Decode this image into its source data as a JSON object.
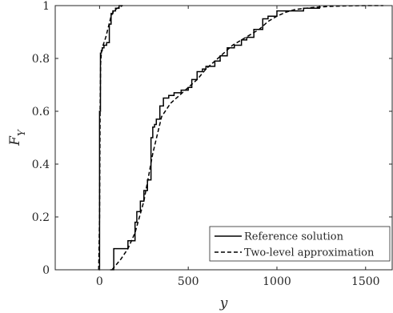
{
  "chart_data": {
    "type": "line",
    "title": "",
    "xlabel": "y",
    "ylabel": "F_Y",
    "ylabel_main": "F",
    "ylabel_sub": "Y",
    "xlim": [
      -250,
      1650
    ],
    "ylim": [
      0,
      1
    ],
    "xticks": [
      0,
      500,
      1000,
      1500
    ],
    "yticks": [
      0,
      0.2,
      0.4,
      0.6,
      0.8,
      1
    ],
    "xtick_labels": [
      "0",
      "500",
      "1000",
      "1500"
    ],
    "ytick_labels": [
      "0",
      "0.2",
      "0.4",
      "0.6",
      "0.8",
      "1"
    ],
    "grid": false,
    "legend_position": "bottom-right",
    "legend": [
      {
        "label": "Reference solution",
        "style": "solid"
      },
      {
        "label": "Two-level approximation",
        "style": "dashed"
      }
    ],
    "series": [
      {
        "name": "Reference solution",
        "style": "solid",
        "step": true,
        "x": [
          -5,
          0,
          5,
          10,
          15,
          25,
          40,
          55,
          65,
          75,
          90,
          110,
          130
        ],
        "y": [
          0,
          0.6,
          0.82,
          0.83,
          0.84,
          0.85,
          0.86,
          0.93,
          0.97,
          0.98,
          0.99,
          1.0,
          1.0
        ]
      },
      {
        "name": "Two-level approximation",
        "style": "dashed",
        "step": false,
        "x": [
          -5,
          0,
          3,
          6,
          10,
          20,
          35,
          50,
          65,
          80,
          100,
          130
        ],
        "y": [
          0,
          0.2,
          0.6,
          0.78,
          0.82,
          0.85,
          0.88,
          0.92,
          0.96,
          0.98,
          0.99,
          1.0
        ]
      },
      {
        "name": "Reference solution",
        "style": "solid",
        "step": true,
        "x": [
          60,
          80,
          160,
          200,
          210,
          230,
          250,
          270,
          290,
          300,
          310,
          320,
          340,
          360,
          390,
          420,
          460,
          500,
          520,
          550,
          580,
          600,
          650,
          680,
          720,
          760,
          800,
          830,
          870,
          920,
          950,
          1000,
          1050,
          1100,
          1150,
          1240
        ],
        "y": [
          0,
          0.08,
          0.11,
          0.18,
          0.22,
          0.26,
          0.3,
          0.34,
          0.5,
          0.54,
          0.55,
          0.57,
          0.62,
          0.65,
          0.66,
          0.67,
          0.68,
          0.69,
          0.72,
          0.75,
          0.76,
          0.77,
          0.79,
          0.81,
          0.84,
          0.85,
          0.87,
          0.88,
          0.91,
          0.95,
          0.96,
          0.98,
          0.98,
          0.98,
          0.99,
          1.0
        ]
      },
      {
        "name": "Two-level approximation",
        "style": "dashed",
        "step": false,
        "x": [
          70,
          120,
          160,
          200,
          250,
          300,
          350,
          400,
          450,
          500,
          550,
          600,
          650,
          700,
          750,
          800,
          850,
          900,
          950,
          1000,
          1050,
          1100,
          1200,
          1300,
          1400,
          1500,
          1600
        ],
        "y": [
          0,
          0.04,
          0.08,
          0.14,
          0.26,
          0.44,
          0.58,
          0.63,
          0.66,
          0.69,
          0.72,
          0.76,
          0.79,
          0.82,
          0.85,
          0.87,
          0.89,
          0.91,
          0.94,
          0.96,
          0.975,
          0.985,
          0.993,
          0.997,
          0.999,
          1.0,
          1.0
        ]
      }
    ]
  }
}
